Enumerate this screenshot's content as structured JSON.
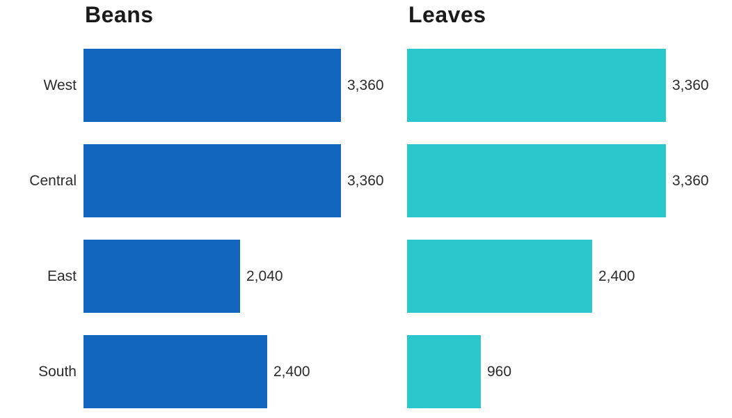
{
  "page": {
    "background_color": "#FFFFFF",
    "text_color": "#2B2B2B",
    "title_color": "#1A1A1A"
  },
  "chart_data": [
    {
      "type": "bar",
      "title": "Beans",
      "orientation": "horizontal",
      "categories": [
        "West",
        "Central",
        "East",
        "South"
      ],
      "values": [
        3360,
        3360,
        2040,
        2400
      ],
      "value_labels": [
        "3,360",
        "3,360",
        "2,040",
        "2,400"
      ],
      "xlim": [
        0,
        3360
      ],
      "bar_color": "#1266BE",
      "grid": false,
      "legend": false,
      "value_label_position": "right-of-bar"
    },
    {
      "type": "bar",
      "title": "Leaves",
      "orientation": "horizontal",
      "categories": [
        "West",
        "Central",
        "East",
        "South"
      ],
      "values": [
        3360,
        3360,
        2400,
        960
      ],
      "value_labels": [
        "3,360",
        "3,360",
        "2,400",
        "960"
      ],
      "xlim": [
        0,
        3360
      ],
      "bar_color": "#2AC7CD",
      "grid": false,
      "legend": false,
      "value_label_position": "right-of-bar"
    }
  ]
}
